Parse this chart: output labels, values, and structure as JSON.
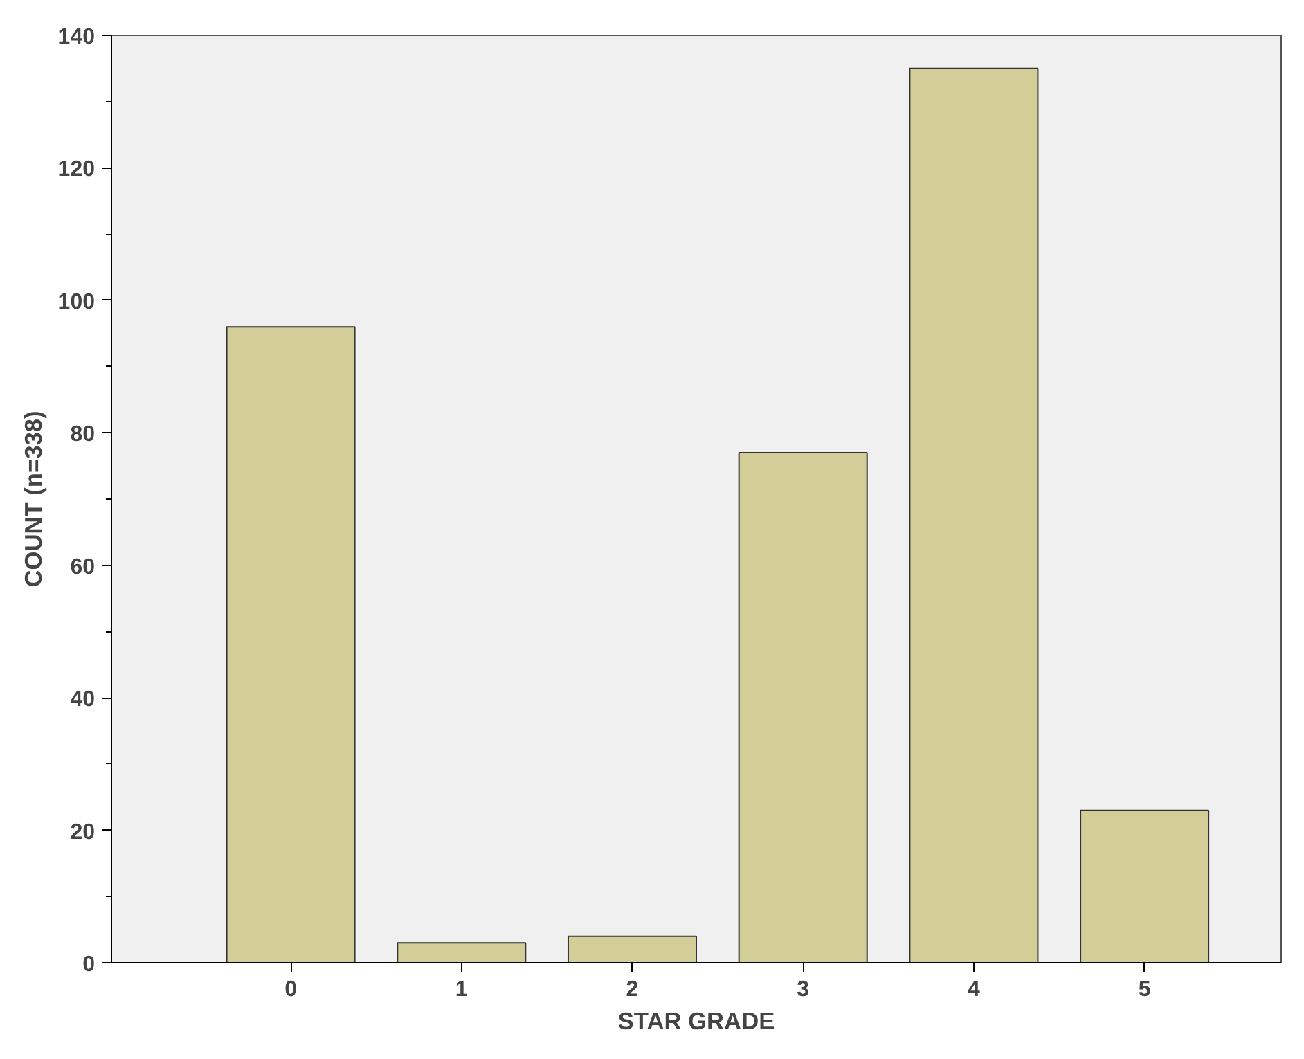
{
  "chart_data": {
    "type": "bar",
    "xlabel": "STAR GRADE",
    "ylabel": "COUNT (n=338)",
    "categories": [
      "0",
      "1",
      "2",
      "3",
      "4",
      "5"
    ],
    "values": [
      96,
      3,
      4,
      77,
      135,
      23
    ],
    "color": "#d3ce97",
    "ylim": [
      0,
      140
    ],
    "yticks": [
      0,
      {
        "value": 10,
        "label": null
      },
      20,
      {
        "value": 30,
        "label": null
      },
      40,
      {
        "value": 50,
        "label": null
      },
      60,
      {
        "value": 70,
        "label": null
      },
      80,
      {
        "value": 90,
        "label": null
      },
      100,
      {
        "value": 110,
        "label": null
      },
      120,
      {
        "value": 130,
        "label": null
      },
      140
    ],
    "grid": false
  }
}
